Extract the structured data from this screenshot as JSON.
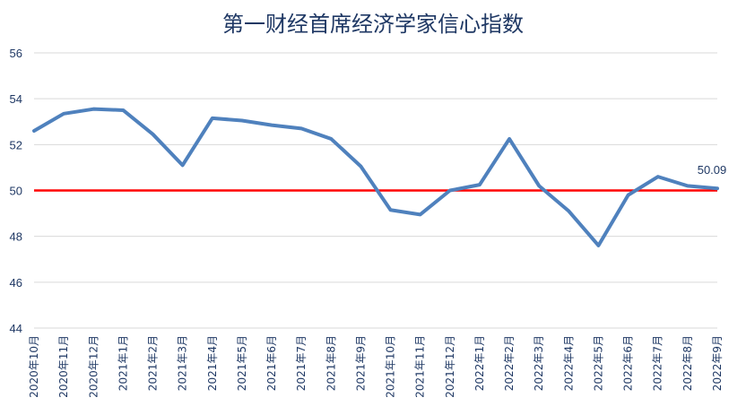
{
  "chart_data": {
    "type": "line",
    "title": "第一财经首席经济学家信心指数",
    "categories": [
      "2020年10月",
      "2020年11月",
      "2020年12月",
      "2021年1月",
      "2021年2月",
      "2021年3月",
      "2021年4月",
      "2021年5月",
      "2021年6月",
      "2021年7月",
      "2021年8月",
      "2021年9月",
      "2021年10月",
      "2021年11月",
      "2021年12月",
      "2022年1月",
      "2022年2月",
      "2022年3月",
      "2022年4月",
      "2022年5月",
      "2022年6月",
      "2022年7月",
      "2022年8月",
      "2022年9月"
    ],
    "series": [
      {
        "values": [
          52.6,
          53.35,
          53.55,
          53.5,
          52.45,
          51.1,
          53.15,
          53.05,
          52.85,
          52.7,
          52.25,
          51.05,
          49.15,
          48.95,
          50.0,
          50.25,
          52.25,
          50.2,
          49.1,
          47.6,
          49.8,
          50.6,
          50.2,
          50.09
        ],
        "color": "#4f81bd"
      }
    ],
    "reference_line": {
      "value": 50,
      "color": "#ff0000"
    },
    "data_label": {
      "index": 23,
      "text": "50.09"
    },
    "ylim": [
      44,
      56
    ],
    "yticks": [
      44,
      46,
      48,
      50,
      52,
      54,
      56
    ],
    "grid": true,
    "xlabel": "",
    "ylabel": ""
  }
}
